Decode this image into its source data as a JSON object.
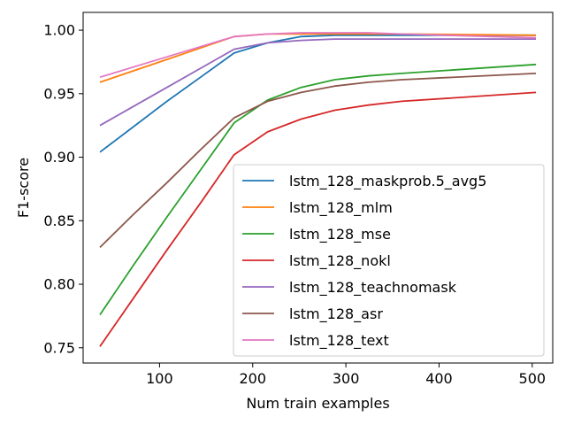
{
  "chart_data": {
    "type": "line",
    "title": "",
    "xlabel": "Num train examples",
    "ylabel": "F1-score",
    "xlim": [
      18,
      522
    ],
    "ylim": [
      0.738,
      1.014
    ],
    "xticks": [
      100,
      200,
      300,
      400,
      500
    ],
    "xtick_labels": [
      "100",
      "200",
      "300",
      "400",
      "500"
    ],
    "yticks": [
      0.75,
      0.8,
      0.85,
      0.9,
      0.95,
      1.0
    ],
    "ytick_labels": [
      "0.75",
      "0.80",
      "0.85",
      "0.90",
      "0.95",
      "1.00"
    ],
    "grid": false,
    "legend_position": "lower-right",
    "x": [
      36,
      72,
      108,
      144,
      180,
      216,
      252,
      288,
      324,
      360,
      504
    ],
    "series": [
      {
        "name": "lstm_128_maskprob.5_avg5",
        "color": "#1f77b4",
        "values": [
          0.904,
          0.924,
          0.944,
          0.963,
          0.982,
          0.99,
          0.995,
          0.996,
          0.996,
          0.996,
          0.996
        ]
      },
      {
        "name": "lstm_128_mlm",
        "color": "#ff7f0e",
        "values": [
          0.959,
          0.968,
          0.977,
          0.986,
          0.995,
          0.997,
          0.997,
          0.997,
          0.997,
          0.997,
          0.996
        ]
      },
      {
        "name": "lstm_128_mse",
        "color": "#2ca02c",
        "values": [
          0.776,
          0.815,
          0.853,
          0.89,
          0.927,
          0.945,
          0.955,
          0.961,
          0.964,
          0.966,
          0.973
        ]
      },
      {
        "name": "lstm_128_nokl",
        "color": "#d62728",
        "values": [
          0.751,
          0.789,
          0.827,
          0.864,
          0.902,
          0.92,
          0.93,
          0.937,
          0.941,
          0.944,
          0.951
        ]
      },
      {
        "name": "lstm_128_teachnomask",
        "color": "#9467bd",
        "values": [
          0.925,
          0.94,
          0.955,
          0.97,
          0.985,
          0.99,
          0.992,
          0.993,
          0.993,
          0.993,
          0.993
        ]
      },
      {
        "name": "lstm_128_asr",
        "color": "#8c564b",
        "values": [
          0.829,
          0.855,
          0.88,
          0.906,
          0.931,
          0.944,
          0.951,
          0.956,
          0.959,
          0.961,
          0.966
        ]
      },
      {
        "name": "lstm_128_text",
        "color": "#e377c2",
        "values": [
          0.963,
          0.971,
          0.979,
          0.987,
          0.995,
          0.997,
          0.998,
          0.998,
          0.998,
          0.997,
          0.994
        ]
      }
    ]
  }
}
